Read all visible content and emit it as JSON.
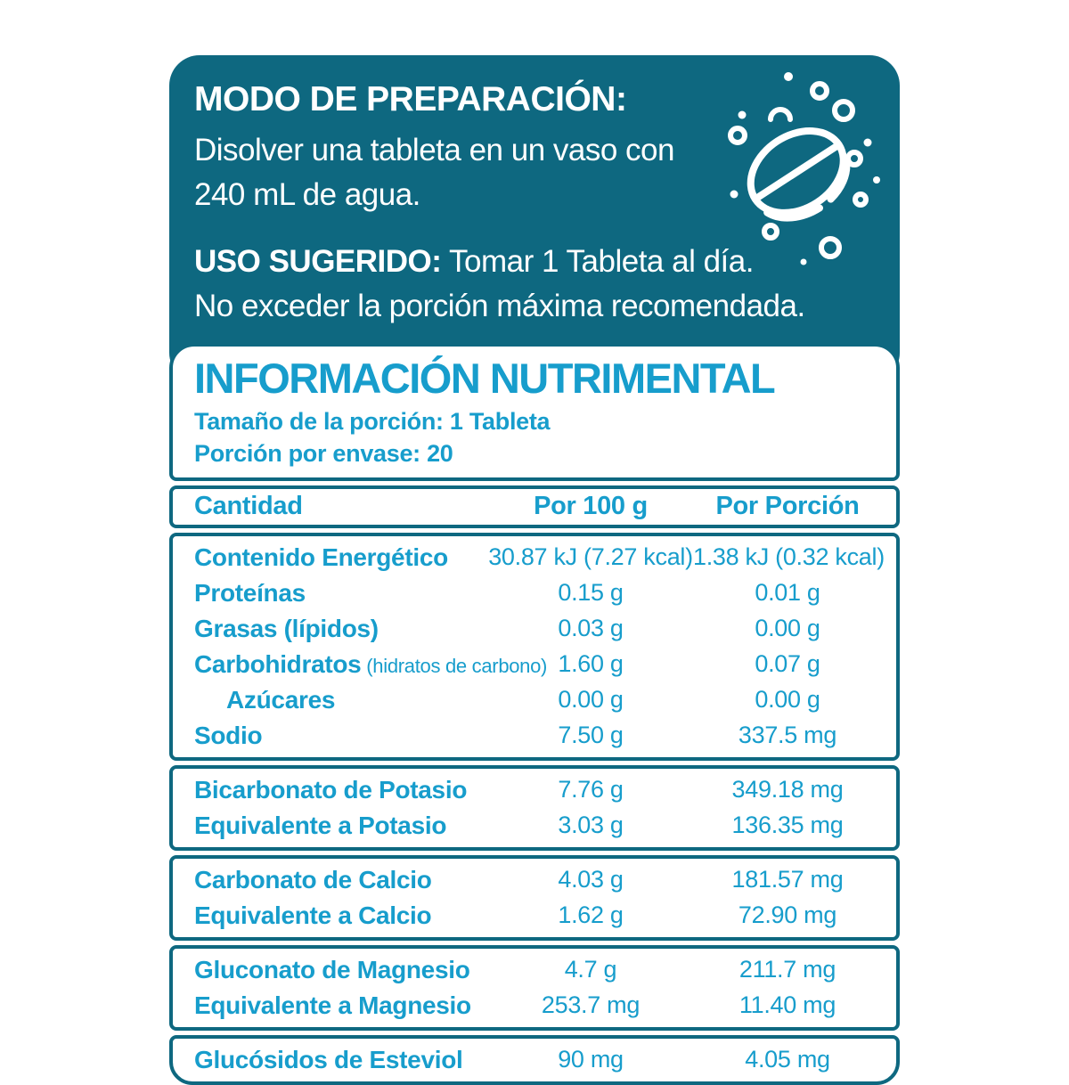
{
  "colors": {
    "teal": "#0e6880",
    "cyan": "#179dcc",
    "white": "#ffffff"
  },
  "preparation": {
    "title": "MODO DE PREPARACIÓN:",
    "line1": "Disolver una tableta en un vaso con",
    "line2": "240 mL de agua.",
    "uso_label": "USO SUGERIDO:",
    "uso_text": " Tomar 1 Tableta al día.",
    "uso_line2": "No exceder la porción máxima recomendada.",
    "icon": "effervescent-tablet-icon"
  },
  "nutrition": {
    "title": "INFORMACIÓN NUTRIMENTAL",
    "serving_size": "Tamaño de la porción: 1 Tableta",
    "servings_per_container": "Porción por envase: 20",
    "columns": {
      "amount": "Cantidad",
      "per100": "Por 100 g",
      "portion": "Por Porción"
    },
    "sections": [
      {
        "rows": [
          {
            "label": "Contenido Energético",
            "per100": "30.87 kJ (7.27 kcal)",
            "portion": "1.38 kJ (0.32 kcal)"
          },
          {
            "label": "Proteínas",
            "per100": "0.15 g",
            "portion": "0.01 g"
          },
          {
            "label": "Grasas (lípidos)",
            "per100": "0.03 g",
            "portion": "0.00 g"
          },
          {
            "label": "Carbohidratos",
            "sublabel": "(hidratos de carbono)",
            "per100": "1.60 g",
            "portion": "0.07 g"
          },
          {
            "label": "Azúcares",
            "indent": true,
            "per100": "0.00 g",
            "portion": "0.00 g"
          },
          {
            "label": "Sodio",
            "per100": "7.50 g",
            "portion": "337.5 mg"
          }
        ]
      },
      {
        "rows": [
          {
            "label": "Bicarbonato de Potasio",
            "per100": "7.76 g",
            "portion": "349.18 mg"
          },
          {
            "label": "Equivalente a Potasio",
            "per100": "3.03 g",
            "portion": "136.35 mg"
          }
        ]
      },
      {
        "rows": [
          {
            "label": "Carbonato de Calcio",
            "per100": "4.03 g",
            "portion": "181.57 mg"
          },
          {
            "label": "Equivalente a Calcio",
            "per100": "1.62 g",
            "portion": "72.90 mg"
          }
        ]
      },
      {
        "rows": [
          {
            "label": "Gluconato de Magnesio",
            "per100": "4.7 g",
            "portion": "211.7 mg"
          },
          {
            "label": "Equivalente a Magnesio",
            "per100": "253.7 mg",
            "portion": "11.40 mg"
          }
        ]
      },
      {
        "rows": [
          {
            "label": "Glucósidos de Esteviol",
            "per100": "90 mg",
            "portion": "4.05 mg"
          }
        ]
      }
    ]
  }
}
